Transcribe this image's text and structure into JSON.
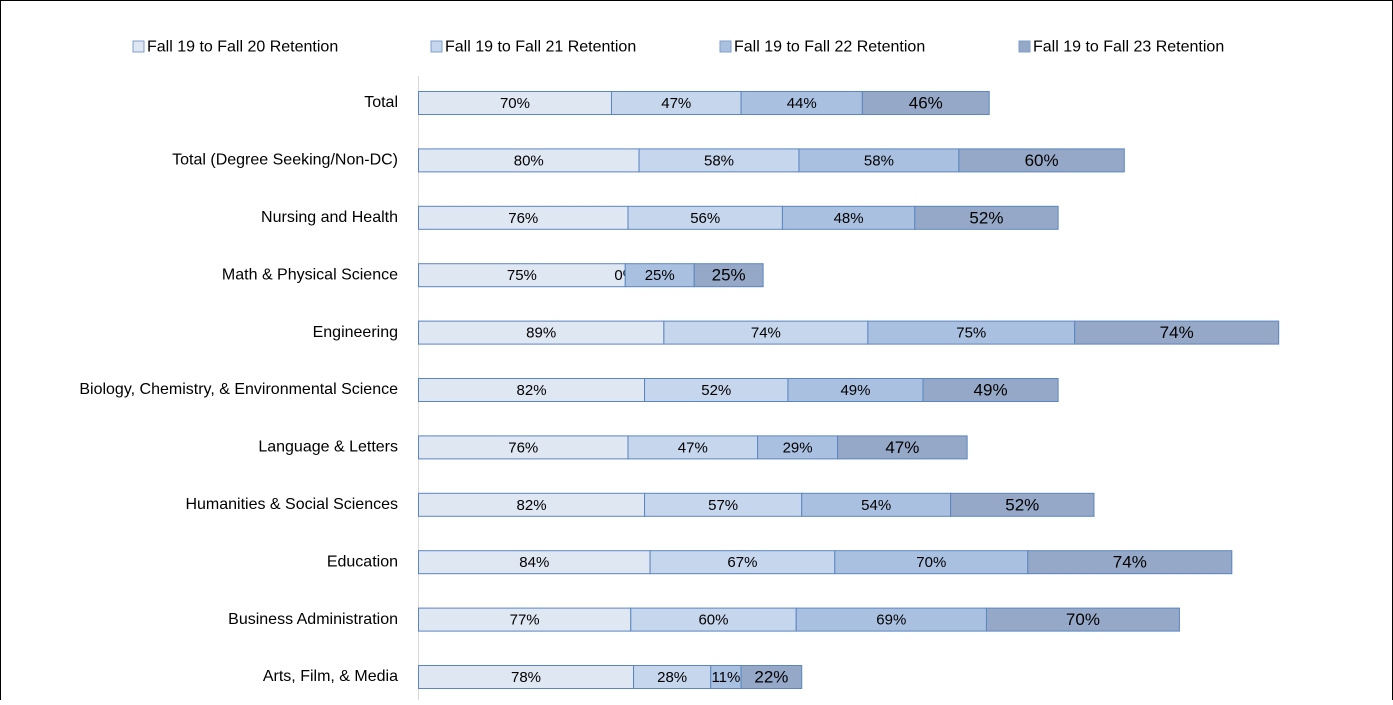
{
  "chart_data": {
    "type": "stacked_barh",
    "categories": [
      "Total",
      "Total (Degree Seeking/Non-DC)",
      "Nursing and Health",
      "Math & Physical Science",
      "Engineering",
      "Biology, Chemistry, & Environmental Science",
      "Language & Letters",
      "Humanities & Social Sciences",
      "Education",
      "Business Administration",
      "Arts, Film, & Media"
    ],
    "series": [
      {
        "name": "Fall 19 to Fall 20 Retention",
        "color": "#dfe7f3",
        "values": [
          70,
          80,
          76,
          75,
          89,
          82,
          76,
          82,
          84,
          77,
          78
        ],
        "value_labels": [
          "70%",
          "80%",
          "76%",
          "75%",
          "89%",
          "82%",
          "76%",
          "82%",
          "84%",
          "77%",
          "78%"
        ]
      },
      {
        "name": "Fall 19 to Fall 21 Retention",
        "color": "#c6d6ed",
        "values": [
          47,
          58,
          56,
          0,
          74,
          52,
          47,
          57,
          67,
          60,
          28
        ],
        "value_labels": [
          "47%",
          "58%",
          "56%",
          "0%",
          "74%",
          "52%",
          "47%",
          "57%",
          "67%",
          "60%",
          "28%"
        ]
      },
      {
        "name": "Fall 19 to Fall 22 Retention",
        "color": "#aac0e1",
        "values": [
          44,
          58,
          48,
          25,
          75,
          49,
          29,
          54,
          70,
          69,
          11
        ],
        "value_labels": [
          "44%",
          "58%",
          "48%",
          "25%",
          "75%",
          "49%",
          "29%",
          "54%",
          "70%",
          "69%",
          "11%"
        ]
      },
      {
        "name": "Fall 19 to Fall 23 Retention",
        "color": "#95a8c7",
        "values": [
          46,
          60,
          52,
          25,
          74,
          49,
          47,
          52,
          74,
          70,
          22
        ],
        "value_labels": [
          "46%",
          "60%",
          "52%",
          "25%",
          "74%",
          "49%",
          "47%",
          "52%",
          "74%",
          "70%",
          "22%"
        ]
      }
    ]
  }
}
